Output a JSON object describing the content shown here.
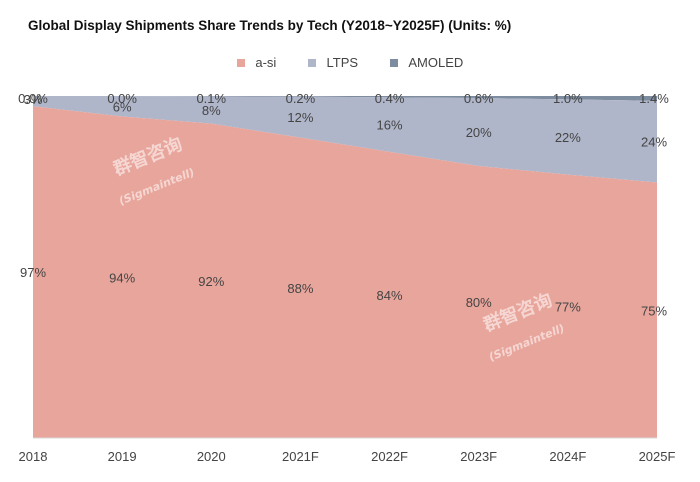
{
  "title": "Global Display Shipments Share Trends by Tech (Y2018~Y2025F) (Units: %)",
  "watermark": {
    "cn": "群智咨询",
    "en": "(Sigmaintell)"
  },
  "chart_data": {
    "type": "area",
    "stacked": true,
    "percent": true,
    "title": "Global Display Shipments Share Trends by Tech (Y2018~Y2025F) (Units: %)",
    "categories": [
      "2018",
      "2019",
      "2020",
      "2021F",
      "2022F",
      "2023F",
      "2024F",
      "2025F"
    ],
    "ylim": [
      0,
      100
    ],
    "legend_position": "top-center",
    "grid": false,
    "series": [
      {
        "name": "a-si",
        "color": "#e8a59b",
        "values": [
          97,
          94,
          92,
          88,
          84,
          80,
          77,
          75
        ],
        "labels": [
          "97%",
          "94%",
          "92%",
          "88%",
          "84%",
          "80%",
          "77%",
          "75%"
        ]
      },
      {
        "name": "LTPS",
        "color": "#b0b6c9",
        "values": [
          3,
          6,
          8,
          12,
          16,
          20,
          22,
          24
        ],
        "labels": [
          "3%",
          "6%",
          "8%",
          "12%",
          "16%",
          "20%",
          "22%",
          "24%"
        ]
      },
      {
        "name": "AMOLED",
        "color": "#7d8c9e",
        "values": [
          0.0,
          0.0,
          0.1,
          0.2,
          0.4,
          0.6,
          1.0,
          1.4
        ],
        "labels": [
          "0.0%",
          "0.0%",
          "0.1%",
          "0.2%",
          "0.4%",
          "0.6%",
          "1.0%",
          "1.4%"
        ]
      }
    ]
  }
}
